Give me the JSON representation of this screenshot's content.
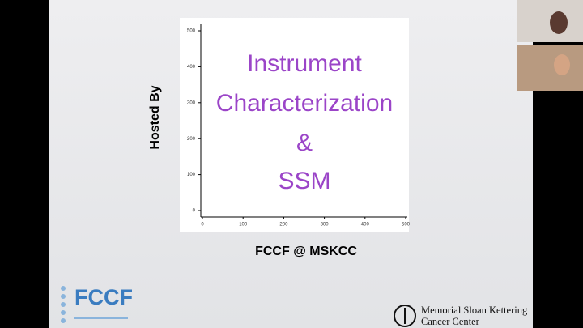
{
  "slide": {
    "plot": {
      "xlim": [
        0,
        500
      ],
      "ylim": [
        0,
        500
      ],
      "xticks": [
        0,
        100,
        200,
        300,
        400,
        500
      ],
      "yticks": [
        0,
        100,
        200,
        300,
        400,
        500
      ],
      "text_lines": [
        "Instrument",
        "Characterization",
        "&",
        "SSM"
      ]
    },
    "y_label": "Hosted By",
    "x_label": "FCCF @ MSKCC",
    "logo_left": "FCCF",
    "logo_right": [
      "Memorial Sloan Kettering",
      "Cancer Center"
    ]
  }
}
